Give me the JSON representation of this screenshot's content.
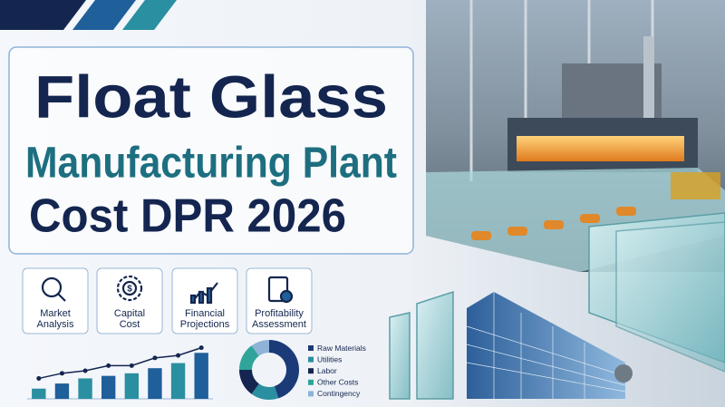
{
  "title": {
    "lines": [
      "Float Glass",
      "Manufacturing Plant",
      "Cost DPR 2026"
    ]
  },
  "features": [
    {
      "lines": [
        "Market",
        "Analysis"
      ]
    },
    {
      "lines": [
        "Capital",
        "Cost"
      ]
    },
    {
      "lines": [
        "Financial",
        "Projections"
      ]
    },
    {
      "lines": [
        "Profitability",
        "Assessment"
      ]
    }
  ],
  "mini_bar_chart": {
    "type": "bar",
    "values": [
      2,
      3,
      4,
      4.5,
      5,
      6,
      7,
      9
    ],
    "line_values": [
      4,
      5,
      5.5,
      6.5,
      6.5,
      8,
      8.5,
      10
    ],
    "ylim": [
      0,
      11
    ],
    "bar_color": "#1f5f9a",
    "line_color": "#14264f"
  },
  "donut_chart": {
    "type": "pie",
    "categories": [
      "Raw Materials",
      "Utilities",
      "Labor",
      "Other Costs",
      "Contingency"
    ],
    "values": [
      45,
      15,
      15,
      15,
      10
    ],
    "colors": [
      "#1b3a78",
      "#2a8fa0",
      "#14264f",
      "#2fa59a",
      "#8fb3d8"
    ]
  }
}
